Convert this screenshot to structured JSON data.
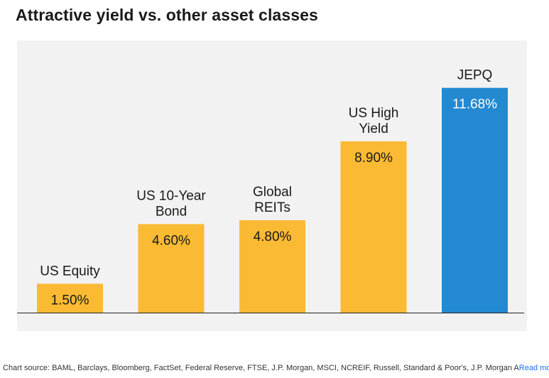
{
  "title": "Attractive yield vs. other asset classes",
  "chart_data": {
    "type": "bar",
    "title": "Attractive yield vs. other asset classes",
    "categories": [
      [
        "US Equity"
      ],
      [
        "US 10-Year",
        "Bond"
      ],
      [
        "Global",
        "REITs"
      ],
      [
        "US High",
        "Yield"
      ],
      [
        "JEPQ"
      ]
    ],
    "values": [
      1.5,
      4.6,
      4.8,
      8.9,
      11.68
    ],
    "value_labels": [
      "1.50%",
      "4.60%",
      "4.80%",
      "8.90%",
      "11.68%"
    ],
    "colors": [
      "#fbba33",
      "#fbba33",
      "#fbba33",
      "#fbba33",
      "#2389d1"
    ],
    "label_colors": [
      "#1a1a1a",
      "#1a1a1a",
      "#1a1a1a",
      "#1a1a1a",
      "#ffffff"
    ],
    "ylim": [
      0,
      12
    ],
    "grid": false,
    "xlabel": "",
    "ylabel": ""
  },
  "footer": {
    "source": "Chart source: BAML, Barclays, Bloomberg, FactSet, Federal Reserve, FTSE, J.P. Morgan, MSCI, NCREIF, Russell, Standard & Poor's, J.P. Morgan A",
    "read_more": "Read more"
  }
}
